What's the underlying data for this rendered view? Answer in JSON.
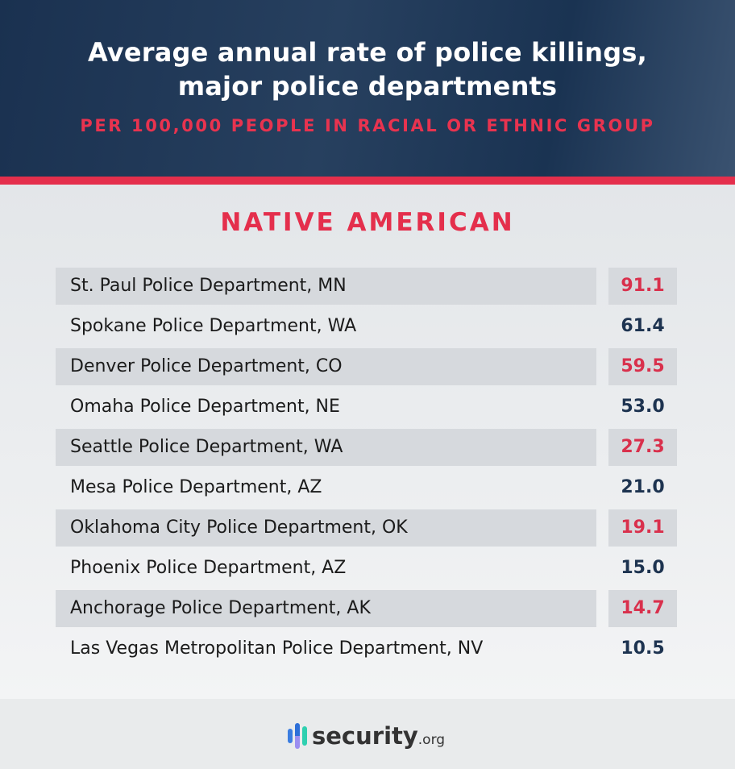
{
  "header": {
    "title_line1": "Average annual rate of police killings,",
    "title_line2": "major police departments",
    "subtitle": "PER 100,000 PEOPLE IN RACIAL OR ETHNIC GROUP"
  },
  "chart_data": {
    "type": "table",
    "title": "Average annual rate of police killings, major police departments",
    "subtitle": "PER 100,000 PEOPLE IN RACIAL OR ETHNIC GROUP",
    "group": "NATIVE AMERICAN",
    "rows": [
      {
        "department": "St. Paul Police Department, MN",
        "value": "91.1"
      },
      {
        "department": "Spokane Police Department, WA",
        "value": "61.4"
      },
      {
        "department": "Denver Police Department, CO",
        "value": "59.5"
      },
      {
        "department": "Omaha Police Department, NE",
        "value": "53.0"
      },
      {
        "department": "Seattle Police Department, WA",
        "value": "27.3"
      },
      {
        "department": "Mesa Police Department, AZ",
        "value": "21.0"
      },
      {
        "department": "Oklahoma City Police Department, OK",
        "value": "19.1"
      },
      {
        "department": "Phoenix Police Department, AZ",
        "value": "15.0"
      },
      {
        "department": "Anchorage Police Department, AK",
        "value": "14.7"
      },
      {
        "department": "Las Vegas Metropolitan Police Department, NV",
        "value": "10.5"
      }
    ]
  },
  "colors": {
    "navy": "#1d3350",
    "red": "#e42f4c",
    "shade": "#d6d9dd"
  },
  "footer": {
    "logo_text": "security",
    "logo_suffix": ".org"
  }
}
